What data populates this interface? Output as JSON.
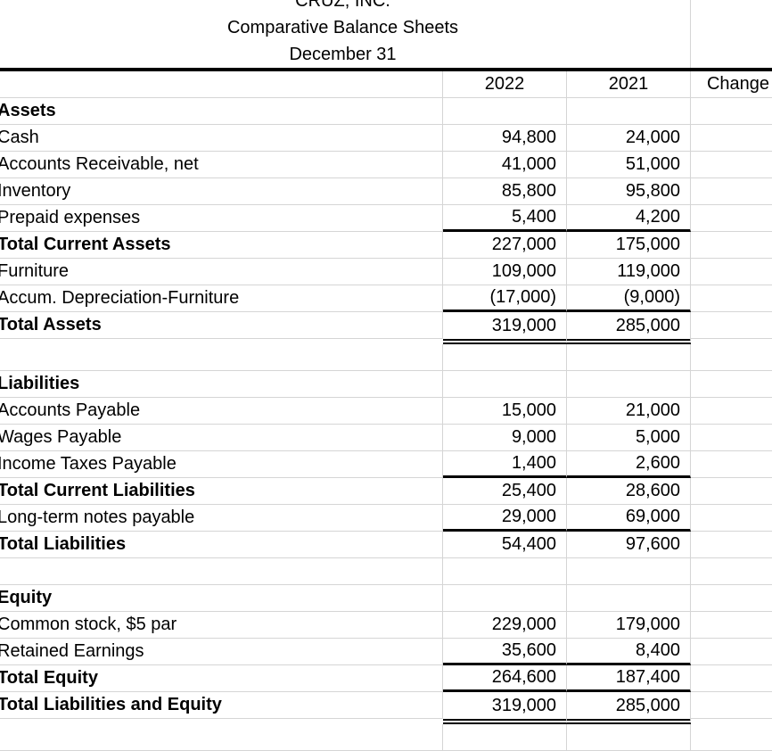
{
  "sheet": {
    "titles": {
      "company": "CRUZ, INC.",
      "report": "Comparative Balance Sheets",
      "date": "December 31"
    },
    "columns": {
      "y2022": "2022",
      "y2021": "2021",
      "change": "Change"
    },
    "rows": [
      {
        "label": "Assets",
        "v2022": "",
        "v2021": "",
        "bold": true,
        "underline": "none"
      },
      {
        "label": "Cash",
        "v2022": "94,800",
        "v2021": "24,000",
        "bold": false,
        "underline": "none"
      },
      {
        "label": "Accounts Receivable, net",
        "v2022": "41,000",
        "v2021": "51,000",
        "bold": false,
        "underline": "none"
      },
      {
        "label": "Inventory",
        "v2022": "85,800",
        "v2021": "95,800",
        "bold": false,
        "underline": "none"
      },
      {
        "label": "Prepaid expenses",
        "v2022": "5,400",
        "v2021": "4,200",
        "bold": false,
        "underline": "single"
      },
      {
        "label": "Total Current Assets",
        "v2022": "227,000",
        "v2021": "175,000",
        "bold": true,
        "underline": "none"
      },
      {
        "label": "Furniture",
        "v2022": "109,000",
        "v2021": "119,000",
        "bold": false,
        "underline": "none"
      },
      {
        "label": "Accum. Depreciation-Furniture",
        "v2022": "(17,000)",
        "v2021": "(9,000)",
        "bold": false,
        "underline": "single"
      },
      {
        "label": "Total Assets",
        "v2022": "319,000",
        "v2021": "285,000",
        "bold": true,
        "underline": "double"
      },
      {
        "label": "",
        "v2022": "",
        "v2021": "",
        "bold": false,
        "underline": "none"
      },
      {
        "label": "Liabilities",
        "v2022": "",
        "v2021": "",
        "bold": true,
        "underline": "none"
      },
      {
        "label": "Accounts Payable",
        "v2022": "15,000",
        "v2021": "21,000",
        "bold": false,
        "underline": "none"
      },
      {
        "label": "Wages Payable",
        "v2022": "9,000",
        "v2021": "5,000",
        "bold": false,
        "underline": "none"
      },
      {
        "label": "Income Taxes Payable",
        "v2022": "1,400",
        "v2021": "2,600",
        "bold": false,
        "underline": "single"
      },
      {
        "label": "Total Current Liabilities",
        "v2022": "25,400",
        "v2021": "28,600",
        "bold": true,
        "underline": "none"
      },
      {
        "label": "Long-term notes payable",
        "v2022": "29,000",
        "v2021": "69,000",
        "bold": false,
        "underline": "single"
      },
      {
        "label": "Total Liabilities",
        "v2022": "54,400",
        "v2021": "97,600",
        "bold": true,
        "underline": "none"
      },
      {
        "label": "",
        "v2022": "",
        "v2021": "",
        "bold": false,
        "underline": "none"
      },
      {
        "label": "Equity",
        "v2022": "",
        "v2021": "",
        "bold": true,
        "underline": "none"
      },
      {
        "label": "Common stock, $5 par",
        "v2022": "229,000",
        "v2021": "179,000",
        "bold": false,
        "underline": "none"
      },
      {
        "label": "Retained Earnings",
        "v2022": "35,600",
        "v2021": "8,400",
        "bold": false,
        "underline": "single"
      },
      {
        "label": "Total Equity",
        "v2022": "264,600",
        "v2021": "187,400",
        "bold": true,
        "underline": "single"
      },
      {
        "label": "Total Liabilities and Equity",
        "v2022": "319,000",
        "v2021": "285,000",
        "bold": true,
        "underline": "double"
      },
      {
        "label": "",
        "v2022": "",
        "v2021": "",
        "bold": false,
        "underline": "none"
      }
    ]
  },
  "colors": {
    "background": "#ffffff",
    "text": "#000000",
    "gridline": "#d5d5d5",
    "heavy_border": "#000000"
  }
}
